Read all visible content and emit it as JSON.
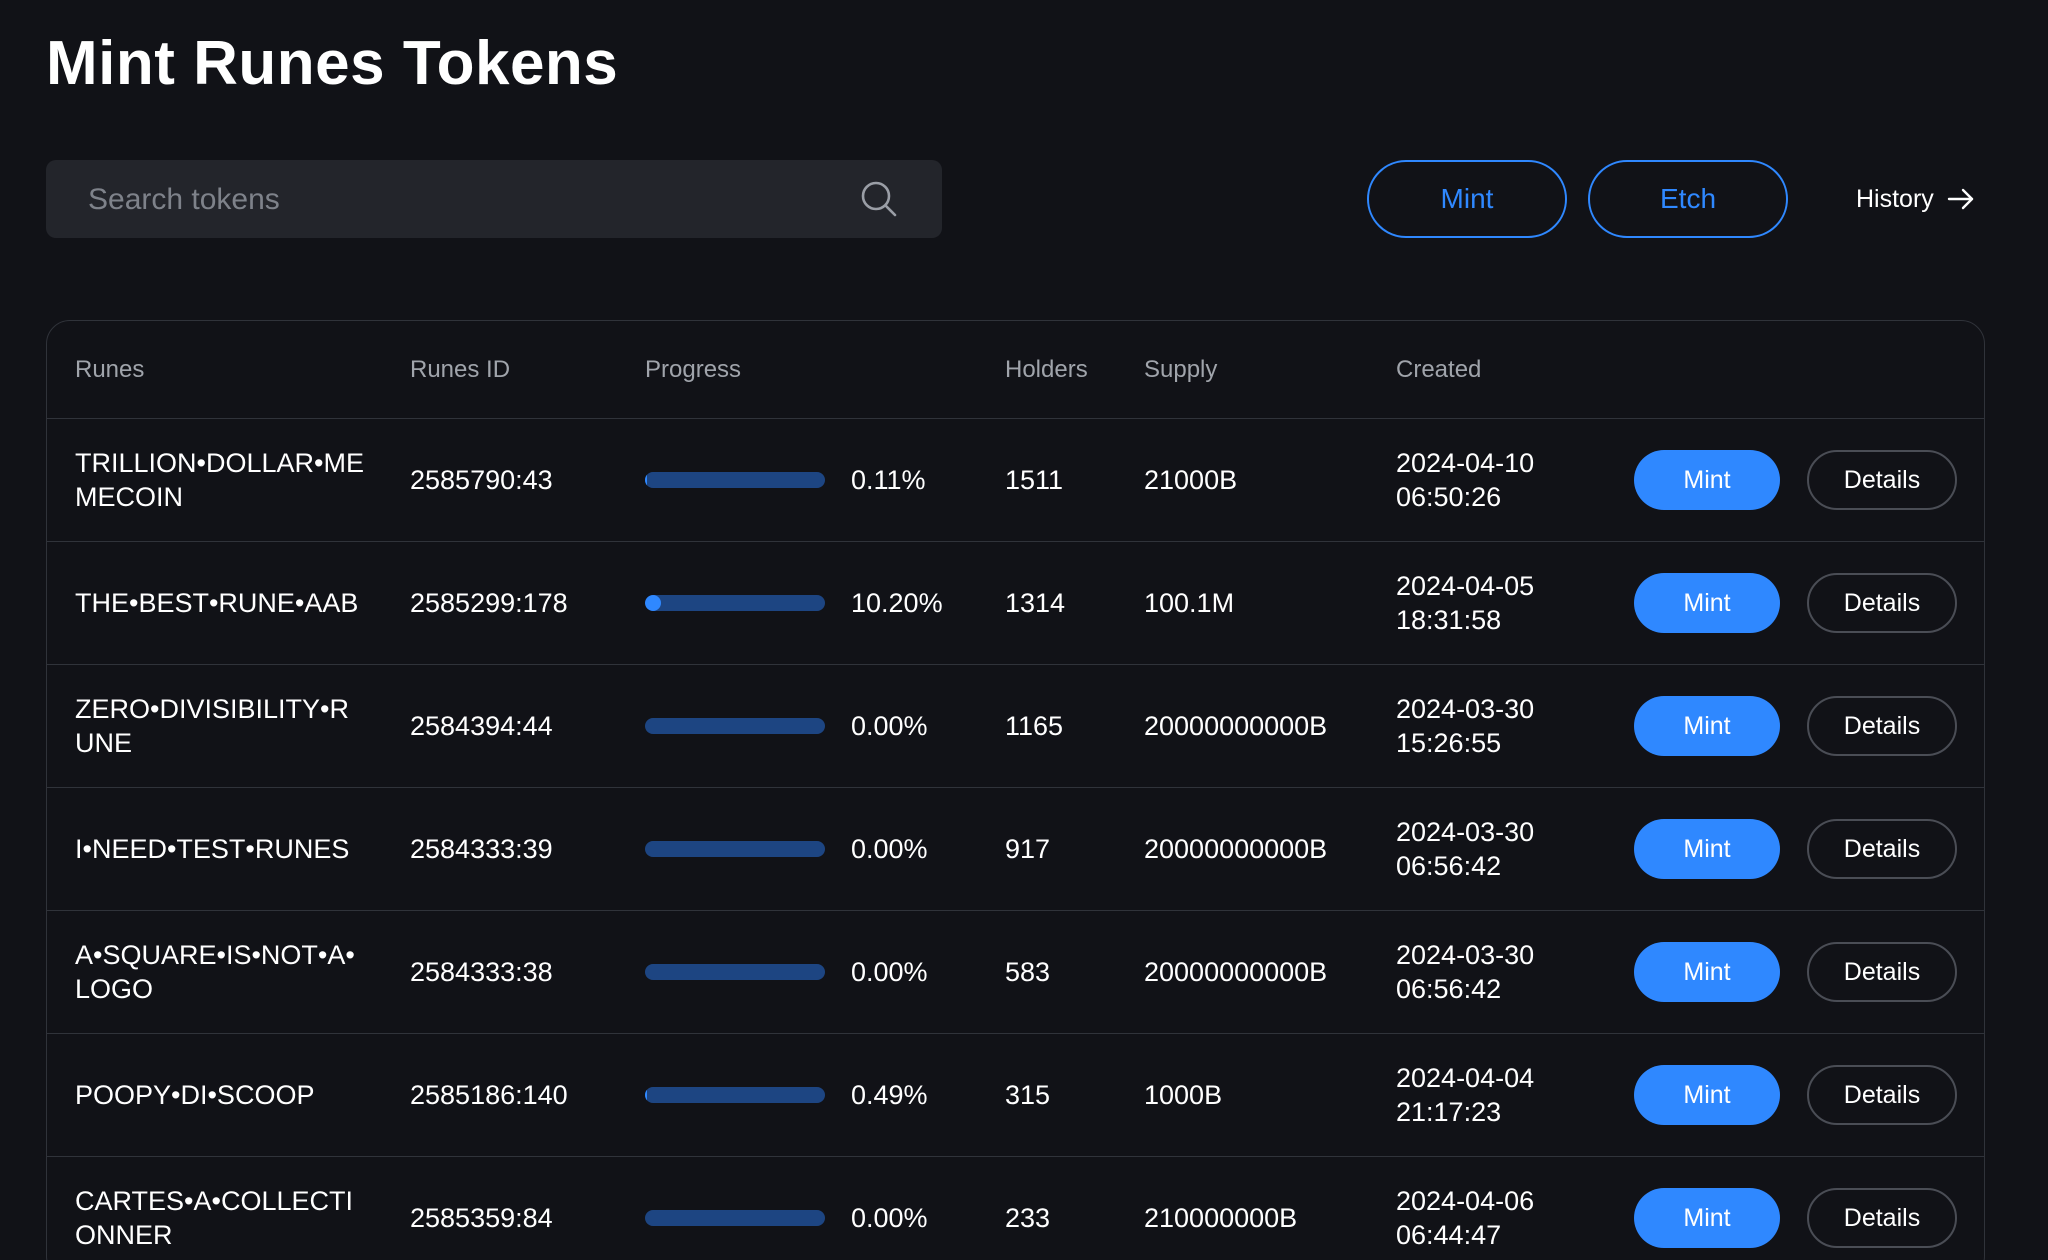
{
  "page": {
    "title": "Mint Runes Tokens"
  },
  "search": {
    "placeholder": "Search tokens",
    "value": ""
  },
  "actions": {
    "mint_label": "Mint",
    "etch_label": "Etch",
    "history_label": "History"
  },
  "colors": {
    "accent": "#2f88ff",
    "progress_track": "#1d4582",
    "background": "#111217",
    "search_bg": "#23252b"
  },
  "table": {
    "columns": [
      "Runes",
      "Runes ID",
      "Progress",
      "Holders",
      "Supply",
      "Created"
    ],
    "rows": [
      {
        "name": "TRILLION•DOLLAR•MEMECOIN",
        "id": "2585790:43",
        "progress": 0.11,
        "progress_label": "0.11%",
        "holders": "1511",
        "supply": "21000B",
        "created_date": "2024-04-10",
        "created_time": "06:50:26",
        "mint_label": "Mint",
        "details_label": "Details"
      },
      {
        "name": "THE•BEST•RUNE•AAB",
        "id": "2585299:178",
        "progress": 10.2,
        "progress_label": "10.20%",
        "holders": "1314",
        "supply": "100.1M",
        "created_date": "2024-04-05",
        "created_time": "18:31:58",
        "mint_label": "Mint",
        "details_label": "Details"
      },
      {
        "name": "ZERO•DIVISIBILITY•RUNE",
        "id": "2584394:44",
        "progress": 0.0,
        "progress_label": "0.00%",
        "holders": "1165",
        "supply": "20000000000B",
        "created_date": "2024-03-30",
        "created_time": "15:26:55",
        "mint_label": "Mint",
        "details_label": "Details"
      },
      {
        "name": "I•NEED•TEST•RUNES",
        "id": "2584333:39",
        "progress": 0.0,
        "progress_label": "0.00%",
        "holders": "917",
        "supply": "20000000000B",
        "created_date": "2024-03-30",
        "created_time": "06:56:42",
        "mint_label": "Mint",
        "details_label": "Details"
      },
      {
        "name": "A•SQUARE•IS•NOT•A•LOGO",
        "id": "2584333:38",
        "progress": 0.0,
        "progress_label": "0.00%",
        "holders": "583",
        "supply": "20000000000B",
        "created_date": "2024-03-30",
        "created_time": "06:56:42",
        "mint_label": "Mint",
        "details_label": "Details"
      },
      {
        "name": "POOPY•DI•SCOOP",
        "id": "2585186:140",
        "progress": 0.49,
        "progress_label": "0.49%",
        "holders": "315",
        "supply": "1000B",
        "created_date": "2024-04-04",
        "created_time": "21:17:23",
        "mint_label": "Mint",
        "details_label": "Details"
      },
      {
        "name": "CARTES•A•COLLECTIONNER",
        "id": "2585359:84",
        "progress": 0.0,
        "progress_label": "0.00%",
        "holders": "233",
        "supply": "210000000B",
        "created_date": "2024-04-06",
        "created_time": "06:44:47",
        "mint_label": "Mint",
        "details_label": "Details"
      }
    ]
  }
}
